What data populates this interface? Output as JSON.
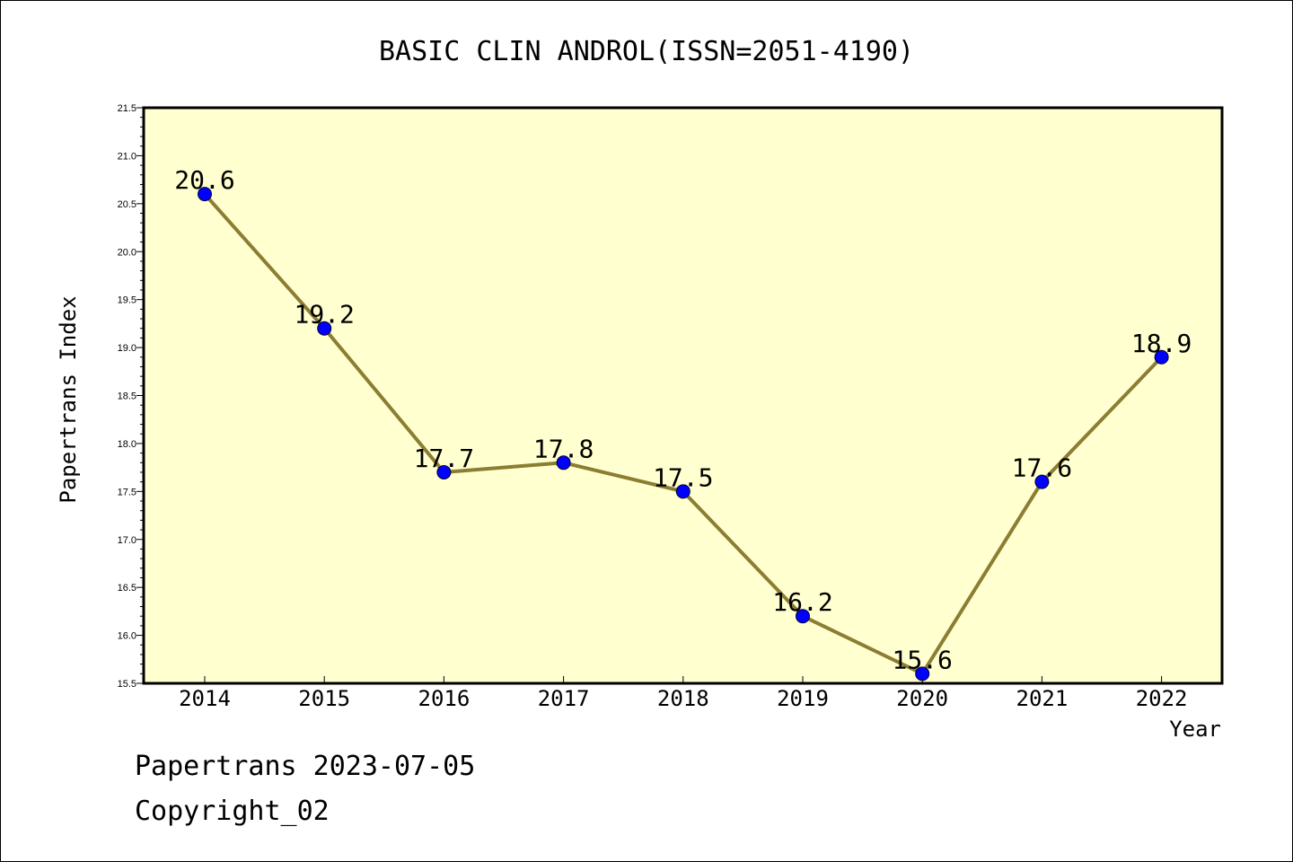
{
  "chart_data": {
    "type": "line",
    "title": "BASIC CLIN ANDROL(ISSN=2051-4190)",
    "xlabel": "Year",
    "ylabel": "Papertrans Index",
    "categories": [
      "2014",
      "2015",
      "2016",
      "2017",
      "2018",
      "2019",
      "2020",
      "2021",
      "2022"
    ],
    "series": [
      {
        "values": [
          20.6,
          19.2,
          17.7,
          17.8,
          17.5,
          16.2,
          15.6,
          17.6,
          18.9
        ]
      }
    ],
    "data_labels": [
      "20.6",
      "19.2",
      "17.7",
      "17.8",
      "17.5",
      "16.2",
      "15.6",
      "17.6",
      "18.9"
    ],
    "ylim": [
      15.5,
      21.5
    ],
    "yticks": [
      "15.5",
      "16.0",
      "16.5",
      "17.0",
      "17.5",
      "18.0",
      "18.5",
      "19.0",
      "19.5",
      "20.0",
      "20.5",
      "21.0",
      "21.5"
    ],
    "grid": false,
    "colors": {
      "plot_background": "#ffffd0",
      "line": "#8b7d32",
      "marker": "#0000ff"
    }
  },
  "footer": {
    "line1": "Papertrans 2023-07-05",
    "line2": "Copyright_02"
  }
}
